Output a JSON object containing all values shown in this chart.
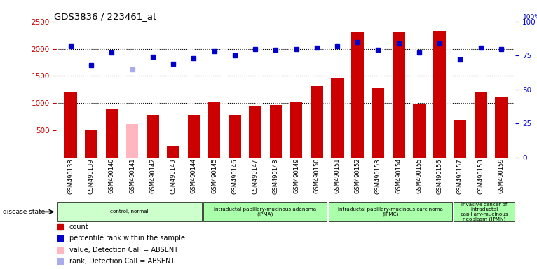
{
  "title": "GDS3836 / 223461_at",
  "samples": [
    "GSM490138",
    "GSM490139",
    "GSM490140",
    "GSM490141",
    "GSM490142",
    "GSM490143",
    "GSM490144",
    "GSM490145",
    "GSM490146",
    "GSM490147",
    "GSM490148",
    "GSM490149",
    "GSM490150",
    "GSM490151",
    "GSM490152",
    "GSM490153",
    "GSM490154",
    "GSM490155",
    "GSM490156",
    "GSM490157",
    "GSM490158",
    "GSM490159"
  ],
  "counts": [
    1200,
    500,
    900,
    620,
    780,
    200,
    780,
    1010,
    780,
    940,
    960,
    1010,
    1310,
    1460,
    2320,
    1270,
    2320,
    970,
    2330,
    680,
    1210,
    1110
  ],
  "absent_counts": [
    null,
    null,
    null,
    620,
    null,
    null,
    null,
    null,
    null,
    null,
    null,
    null,
    null,
    null,
    null,
    null,
    null,
    null,
    null,
    null,
    null,
    null
  ],
  "ranks": [
    82,
    68,
    77,
    null,
    74,
    69,
    73,
    78,
    75,
    80,
    79,
    80,
    81,
    82,
    85,
    79,
    84,
    77,
    84,
    72,
    81,
    80
  ],
  "absent_ranks": [
    null,
    null,
    null,
    65,
    null,
    null,
    null,
    null,
    null,
    null,
    null,
    null,
    null,
    null,
    null,
    null,
    null,
    null,
    null,
    null,
    null,
    null
  ],
  "ylim_left": [
    0,
    2500
  ],
  "ylim_right": [
    0,
    100
  ],
  "yticks_left": [
    500,
    1000,
    1500,
    2000,
    2500
  ],
  "yticks_right": [
    0,
    25,
    50,
    75,
    100
  ],
  "bar_color": "#CC0000",
  "absent_bar_color": "#FFB6C1",
  "rank_color": "#0000CC",
  "absent_rank_color": "#AAAAEE",
  "bg_color": "#CCCCCC",
  "group_ranges": [
    [
      0,
      7,
      "control, normal",
      "#CCFFCC"
    ],
    [
      7,
      13,
      "intraductal papillary-mucinous adenoma\n(IPMA)",
      "#AAFFAA"
    ],
    [
      13,
      19,
      "intraductal papillary-mucinous carcinoma\n(IPMC)",
      "#AAFFAA"
    ],
    [
      19,
      22,
      "invasive cancer of\nintraductal\npapillary-mucinous\nneoplasm (IPMN)",
      "#AAFFAA"
    ]
  ],
  "legend_items": [
    {
      "label": "count",
      "color": "#CC0000"
    },
    {
      "label": "percentile rank within the sample",
      "color": "#0000CC"
    },
    {
      "label": "value, Detection Call = ABSENT",
      "color": "#FFB6C1"
    },
    {
      "label": "rank, Detection Call = ABSENT",
      "color": "#AAAAEE"
    }
  ]
}
